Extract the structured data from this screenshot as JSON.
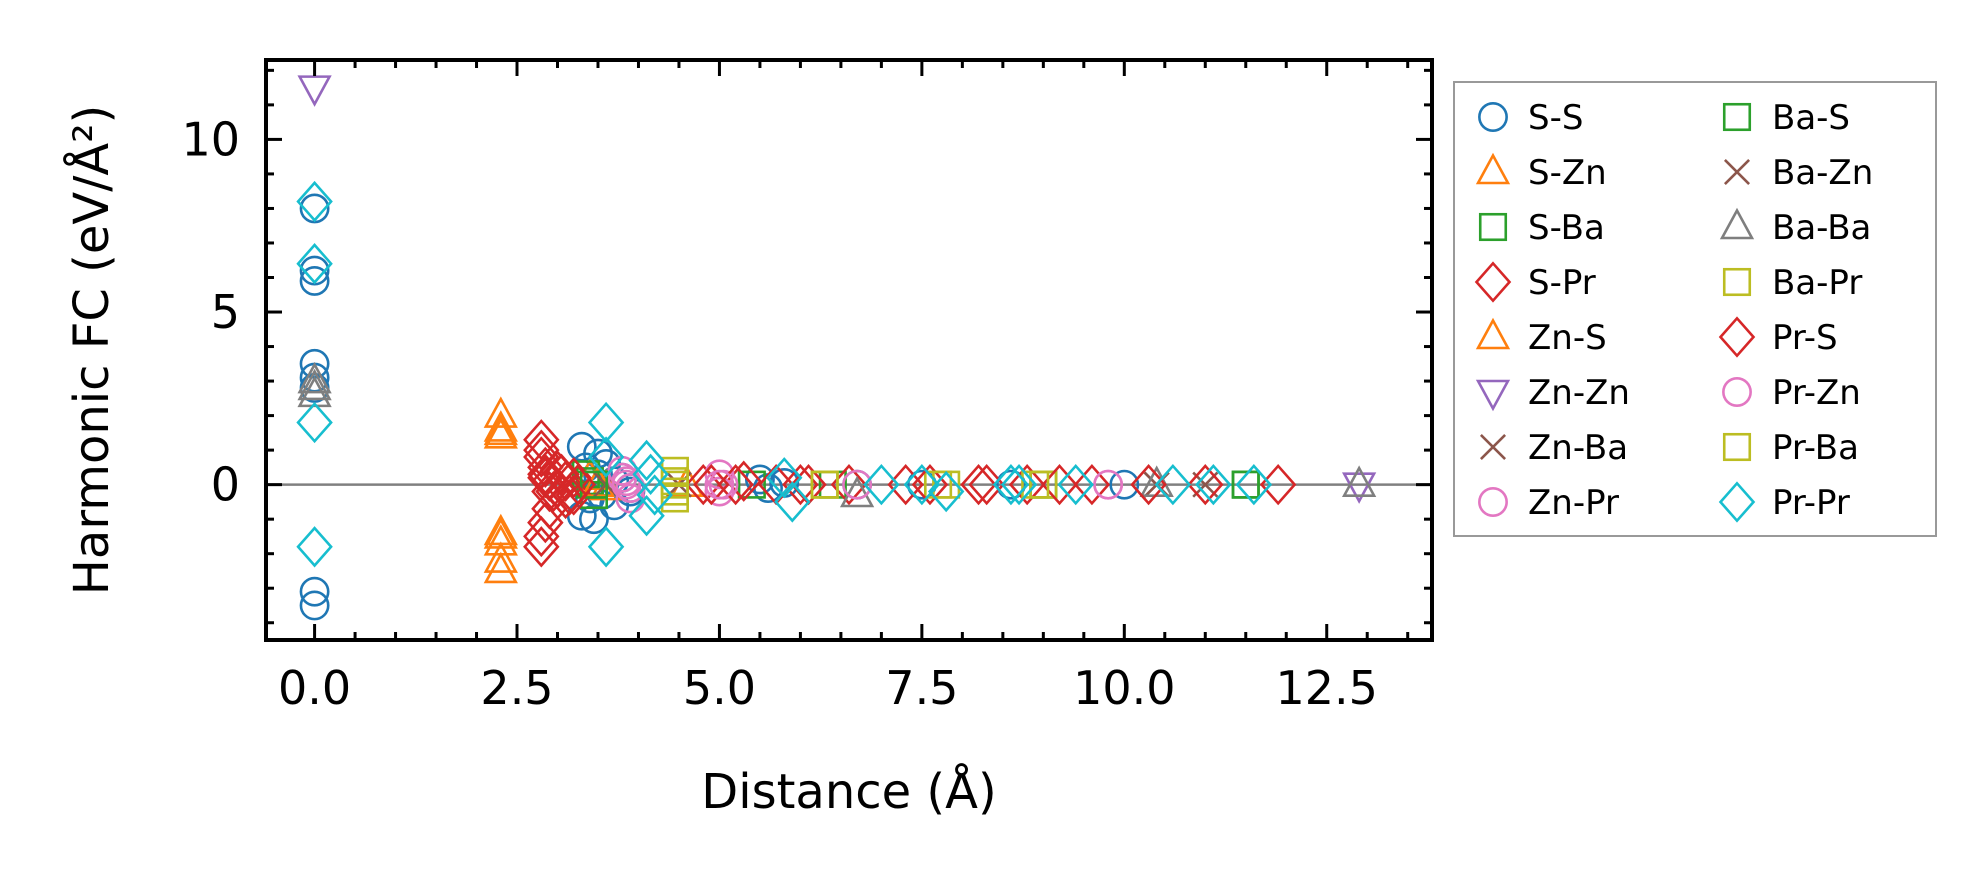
{
  "chart_data": {
    "type": "scatter",
    "title": "",
    "xlabel": "Distance (Å)",
    "ylabel": "Harmonic FC (eV/Å²)",
    "xlim": [
      -0.6,
      13.8
    ],
    "ylim": [
      -4.5,
      12.3
    ],
    "xticks": [
      "0.0",
      "2.5",
      "5.0",
      "7.5",
      "10.0",
      "12.5"
    ],
    "yticks": [
      "0",
      "5",
      "10"
    ],
    "zero_line": true,
    "legend_location": "outside-right",
    "series": [
      {
        "name": "S-S",
        "marker": "circle",
        "color": "#1f77b4",
        "x": [
          0,
          0,
          0,
          0,
          0,
          0,
          0,
          0,
          3.3,
          3.35,
          3.4,
          3.45,
          3.5,
          3.55,
          3.6,
          3.7,
          3.8,
          3.9,
          3.3,
          3.5,
          3.7,
          3.9,
          5.5,
          5.6,
          5.8,
          6.7,
          7.5,
          8.6,
          10.0
        ],
        "y": [
          8.0,
          6.2,
          5.9,
          3.5,
          3.1,
          2.8,
          -3.1,
          -3.5,
          1.1,
          0.5,
          -0.4,
          -1.0,
          0.3,
          -0.3,
          0.6,
          -0.6,
          0.2,
          -0.2,
          -0.9,
          0.9,
          0.1,
          -0.1,
          0.15,
          -0.1,
          0.05,
          0,
          0,
          0,
          0
        ]
      },
      {
        "name": "S-Zn",
        "marker": "triangle-up",
        "color": "#ff7f0e",
        "x": [
          2.3,
          2.3,
          2.3,
          2.3,
          2.3,
          2.3,
          3.4,
          3.6,
          4.6
        ],
        "y": [
          2.0,
          1.6,
          1.5,
          -1.5,
          -1.7,
          -2.5,
          0.2,
          -0.1,
          0
        ]
      },
      {
        "name": "S-Ba",
        "marker": "square",
        "color": "#2ca02c",
        "x": [
          3.35,
          3.4,
          3.45,
          3.4,
          5.4,
          6.4,
          11.5
        ],
        "y": [
          0.3,
          0,
          -0.3,
          0.1,
          0,
          0,
          0
        ]
      },
      {
        "name": "S-Pr",
        "marker": "diamond",
        "color": "#d62728",
        "x": [
          2.8,
          2.8,
          2.8,
          2.85,
          2.85,
          2.9,
          2.9,
          2.8,
          2.8,
          2.85,
          2.9,
          3.0,
          3.1,
          3.2,
          3.0,
          3.1,
          3.2,
          4.8,
          5.3,
          5.7,
          6.1,
          6.6,
          7.3,
          8.2,
          8.8,
          9.6,
          11.9
        ],
        "y": [
          1.3,
          1.0,
          0.8,
          0.5,
          0.3,
          0.1,
          -0.2,
          -1.8,
          -1.5,
          -1.1,
          -0.7,
          0.4,
          -0.4,
          0.2,
          -0.1,
          0.1,
          -0.3,
          0,
          0.1,
          0,
          0,
          0,
          0,
          0,
          0,
          0,
          0
        ]
      },
      {
        "name": "Zn-S",
        "marker": "triangle-up",
        "color": "#ff7f0e",
        "x": [
          2.3,
          2.3,
          2.3,
          3.5
        ],
        "y": [
          1.4,
          -1.4,
          -2.2,
          0
        ]
      },
      {
        "name": "Zn-Zn",
        "marker": "triangle-down",
        "color": "#9467bd",
        "x": [
          0,
          12.9
        ],
        "y": [
          11.5,
          0
        ]
      },
      {
        "name": "Zn-Ba",
        "marker": "x",
        "color": "#8c564b",
        "x": [
          3.6,
          10.4
        ],
        "y": [
          0,
          0
        ]
      },
      {
        "name": "Zn-Pr",
        "marker": "circle",
        "color": "#e377c2",
        "x": [
          3.8,
          3.85,
          3.9,
          3.8,
          5.0,
          5.05,
          5.0,
          9.8
        ],
        "y": [
          0.4,
          0,
          -0.4,
          0.2,
          0.3,
          0,
          -0.2,
          0
        ]
      },
      {
        "name": "Ba-S",
        "marker": "square",
        "color": "#2ca02c",
        "x": [
          3.45,
          9.0,
          11.5
        ],
        "y": [
          0,
          0,
          0
        ]
      },
      {
        "name": "Ba-Zn",
        "marker": "x",
        "color": "#8c564b",
        "x": [
          4.5,
          10.4,
          11.0
        ],
        "y": [
          0,
          0,
          0
        ]
      },
      {
        "name": "Ba-Ba",
        "marker": "triangle-up",
        "color": "#7f7f7f",
        "x": [
          0,
          0,
          0,
          6.7,
          10.4,
          12.9
        ],
        "y": [
          3.0,
          2.8,
          2.6,
          -0.3,
          0,
          0
        ]
      },
      {
        "name": "Ba-Pr",
        "marker": "square",
        "color": "#bcbd22",
        "x": [
          4.45,
          4.45,
          4.45,
          4.45,
          6.3,
          7.7,
          9.0
        ],
        "y": [
          0.4,
          0.1,
          -0.2,
          -0.4,
          0,
          0,
          0
        ]
      },
      {
        "name": "Pr-S",
        "marker": "diamond",
        "color": "#d62728",
        "x": [
          2.85,
          2.95,
          3.05,
          3.15,
          3.25,
          4.9,
          5.2,
          6.0,
          7.6,
          8.3,
          9.2,
          10.3,
          11.0
        ],
        "y": [
          0.2,
          -0.2,
          0.3,
          -0.3,
          0,
          0,
          0,
          0,
          0,
          0,
          0,
          0,
          0
        ]
      },
      {
        "name": "Pr-Zn",
        "marker": "circle",
        "color": "#e377c2",
        "x": [
          3.85,
          3.9,
          5.0,
          6.7,
          9.8
        ],
        "y": [
          0.1,
          -0.1,
          0,
          0,
          0
        ]
      },
      {
        "name": "Pr-Ba",
        "marker": "square",
        "color": "#bcbd22",
        "x": [
          4.45,
          6.3,
          7.8,
          8.9
        ],
        "y": [
          0,
          0,
          0,
          0
        ]
      },
      {
        "name": "Pr-Pr",
        "marker": "diamond",
        "color": "#17becf",
        "x": [
          0,
          0,
          0,
          0,
          3.6,
          3.6,
          3.6,
          4.1,
          4.1,
          4.15,
          4.2,
          5.8,
          5.9,
          7.0,
          7.5,
          7.8,
          8.6,
          8.7,
          9.4,
          10.6,
          11.1,
          11.6
        ],
        "y": [
          8.2,
          6.4,
          1.8,
          -1.8,
          1.8,
          -1.8,
          0.8,
          0.7,
          -0.9,
          0.3,
          -0.3,
          0.2,
          -0.5,
          0,
          0,
          -0.2,
          0,
          0,
          0,
          0,
          0,
          0
        ]
      }
    ]
  }
}
